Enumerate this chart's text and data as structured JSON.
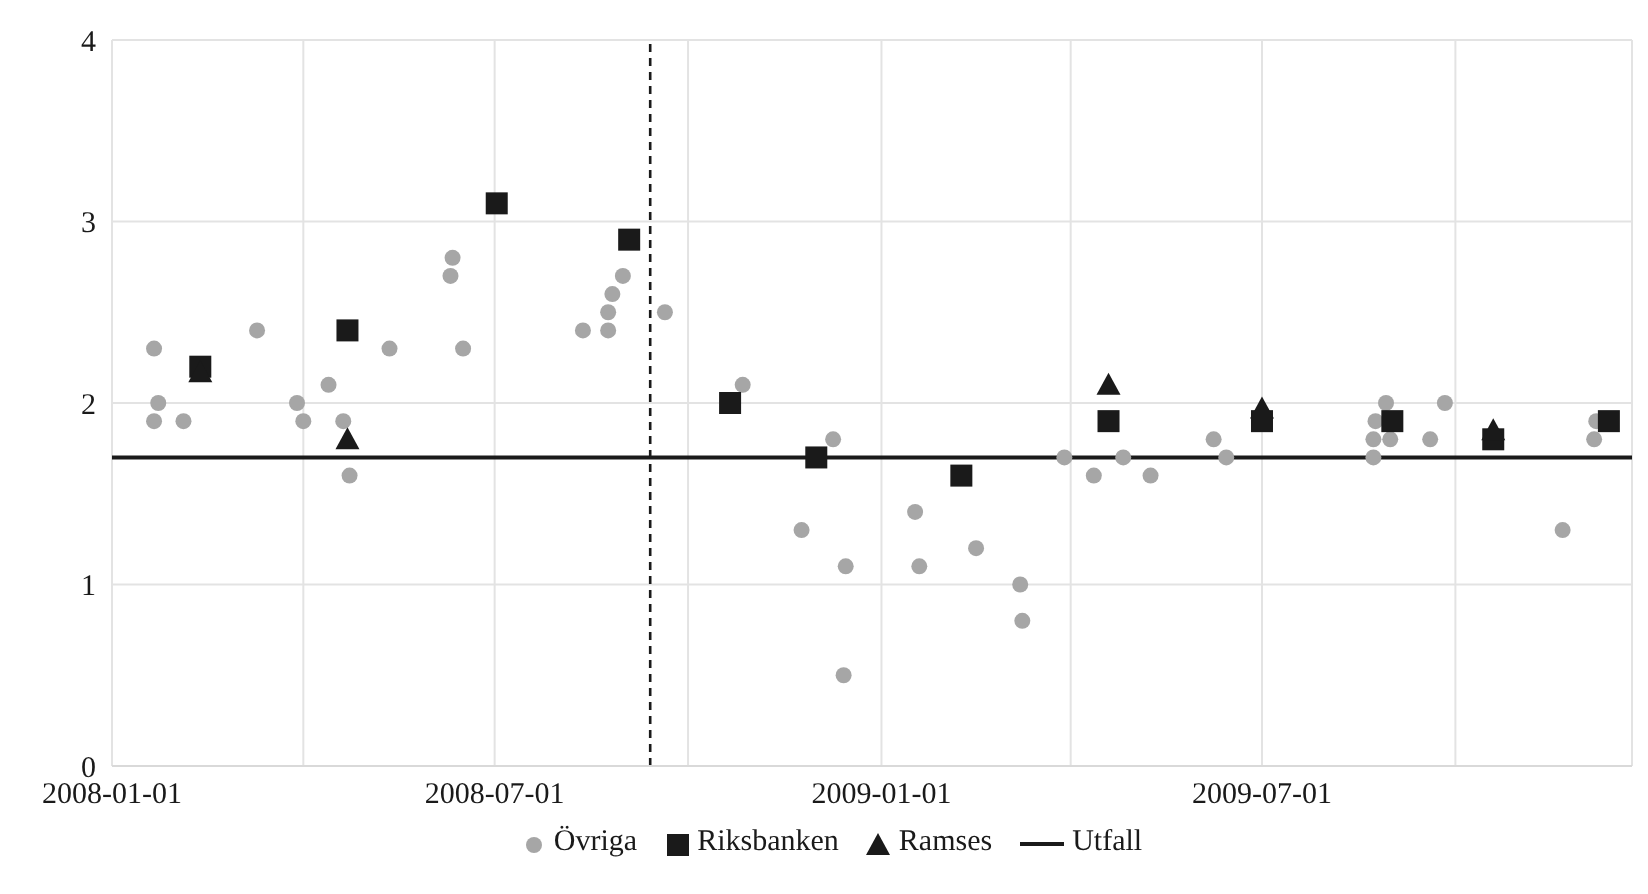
{
  "chart_data": {
    "type": "scatter",
    "xlim": [
      "2008-01-01",
      "2009-12-24"
    ],
    "ylim": [
      0,
      4
    ],
    "yticks": [
      0,
      1,
      2,
      3,
      4
    ],
    "xticks": [
      "2008-01-01",
      {
        "value": "2008-04-01",
        "label": null
      },
      "2008-07-01",
      {
        "value": "2008-10-01",
        "label": null
      },
      "2009-01-01",
      {
        "value": "2009-04-01",
        "label": null
      },
      "2009-07-01",
      {
        "value": "2009-10-01",
        "label": null
      }
    ],
    "grid": true,
    "legend": "bottom",
    "ref_lines": [
      {
        "axis": "x",
        "value": "2008-09-13",
        "color": "#1a1a1a",
        "line_style": "dashed"
      }
    ],
    "series": [
      {
        "name": "Övriga",
        "marker": "circle",
        "color": "#a6a6a6",
        "x": [
          "2008-01-21",
          "2008-01-21",
          "2008-01-23",
          "2008-02-04",
          "2008-03-10",
          "2008-03-29",
          "2008-04-01",
          "2008-04-13",
          "2008-04-20",
          "2008-04-23",
          "2008-05-12",
          "2008-06-10",
          "2008-06-11",
          "2008-06-16",
          "2008-08-12",
          "2008-08-24",
          "2008-08-24",
          "2008-08-26",
          "2008-08-31",
          "2008-09-20",
          "2008-10-27",
          "2008-11-24",
          "2008-12-09",
          "2008-12-15",
          "2008-12-14",
          "2009-01-17",
          "2009-01-19",
          "2009-02-15",
          "2009-03-08",
          "2009-03-09",
          "2009-03-29",
          "2009-04-12",
          "2009-04-26",
          "2009-05-09",
          "2009-06-08",
          "2009-06-14",
          "2009-08-23",
          "2009-08-23",
          "2009-08-24",
          "2009-08-29",
          "2009-08-31",
          "2009-09-19",
          "2009-09-26",
          "2009-11-21",
          "2009-12-06",
          "2009-12-07"
        ],
        "values": [
          2.3,
          1.9,
          2.0,
          1.9,
          2.4,
          2.0,
          1.9,
          2.1,
          1.9,
          1.6,
          2.3,
          2.7,
          2.8,
          2.3,
          2.4,
          2.4,
          2.5,
          2.6,
          2.7,
          2.5,
          2.1,
          1.3,
          1.8,
          1.1,
          0.5,
          1.4,
          1.1,
          1.2,
          1.0,
          0.8,
          1.7,
          1.6,
          1.7,
          1.6,
          1.8,
          1.7,
          1.7,
          1.8,
          1.9,
          2.0,
          1.8,
          1.8,
          2.0,
          1.3,
          1.8,
          1.9
        ]
      },
      {
        "name": "Riksbanken",
        "marker": "square",
        "color": "#1a1a1a",
        "x": [
          "2008-02-12",
          "2008-04-22",
          "2008-07-02",
          "2008-09-03",
          "2008-10-21",
          "2008-12-01",
          "2009-02-08",
          "2009-04-19",
          "2009-07-01",
          "2009-09-01",
          "2009-10-19",
          "2009-12-13"
        ],
        "values": [
          2.2,
          2.4,
          3.1,
          2.9,
          2.0,
          1.7,
          1.6,
          1.9,
          1.9,
          1.9,
          1.8,
          1.9
        ]
      },
      {
        "name": "Ramses",
        "marker": "triangle",
        "color": "#1a1a1a",
        "x": [
          "2008-02-12",
          "2008-04-22",
          "2009-04-19",
          "2009-07-01",
          "2009-10-19"
        ],
        "values": [
          2.17,
          1.8,
          2.1,
          1.97,
          1.85
        ]
      },
      {
        "name": "Utfall",
        "type": "line",
        "marker": "none",
        "color": "#1a1a1a",
        "x": [
          "2008-01-01",
          "2009-12-24"
        ],
        "values": [
          1.7,
          1.7
        ]
      }
    ]
  }
}
